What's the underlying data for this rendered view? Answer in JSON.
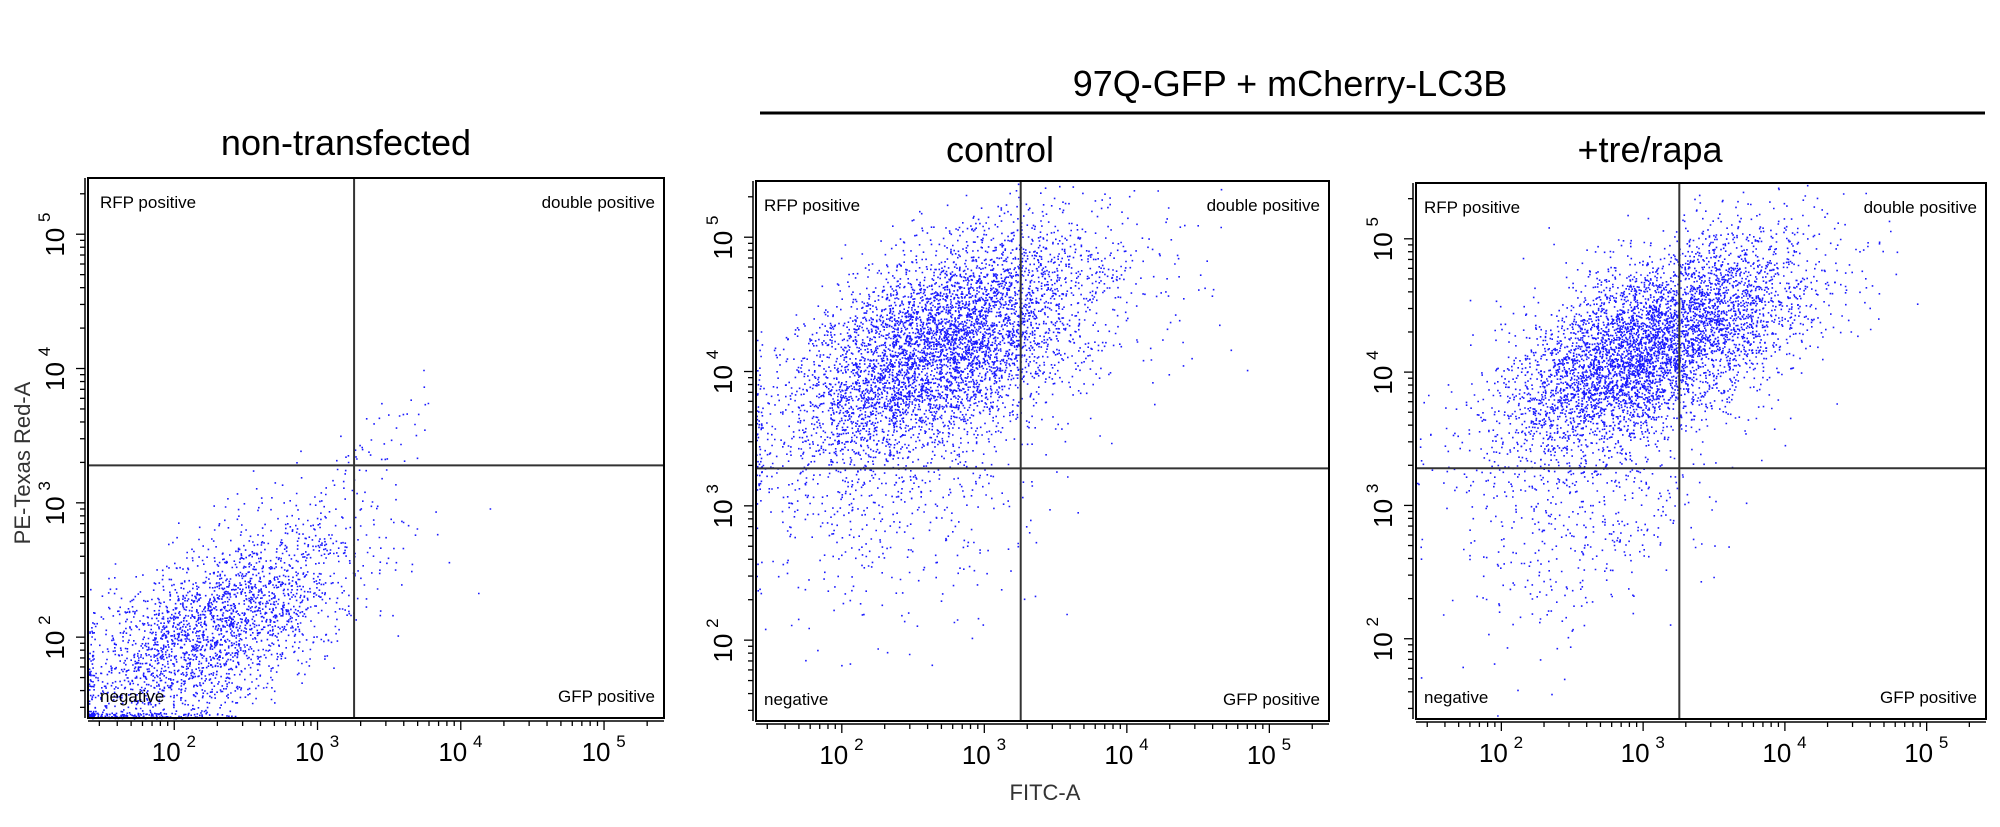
{
  "figure": {
    "group_label": "97Q-GFP + mCherry-LC3B",
    "xlabel": "FITC-A",
    "ylabel": "PE-Texas Red-A"
  },
  "colors": {
    "dots": "#1a1aff",
    "frame": "#000000",
    "gate": "#333333"
  },
  "chart_data": [
    {
      "type": "scatter",
      "title": "non-transfected",
      "xlabel": "FITC-A",
      "ylabel": "PE-Texas Red-A",
      "xscale": "log",
      "yscale": "log",
      "xlim": [
        25,
        262144
      ],
      "ylim": [
        25,
        262144
      ],
      "xticks": [
        {
          "base": "10",
          "exp": "2",
          "value": 100
        },
        {
          "base": "10",
          "exp": "3",
          "value": 1000
        },
        {
          "base": "10",
          "exp": "4",
          "value": 10000
        },
        {
          "base": "10",
          "exp": "5",
          "value": 100000
        }
      ],
      "yticks": [
        {
          "base": "10",
          "exp": "2",
          "value": 100
        },
        {
          "base": "10",
          "exp": "3",
          "value": 1000
        },
        {
          "base": "10",
          "exp": "4",
          "value": 10000
        },
        {
          "base": "10",
          "exp": "5",
          "value": 100000
        }
      ],
      "gate": {
        "x": 1800,
        "y": 1900
      },
      "quadrants": {
        "top_left": "RFP positive",
        "top_right": "double positive",
        "bottom_left": "negative",
        "bottom_right": "GFP positive"
      },
      "populations": [
        {
          "center": [
            180,
            110
          ],
          "log_sd": [
            0.5,
            0.42
          ],
          "correlation": 0.65,
          "events": 2600
        },
        {
          "center": [
            2500,
            2600
          ],
          "log_sd": [
            0.3,
            0.28
          ],
          "correlation": 0.85,
          "events": 60
        }
      ]
    },
    {
      "type": "scatter",
      "title": "control",
      "xlabel": "FITC-A",
      "ylabel": "PE-Texas Red-A",
      "xscale": "log",
      "yscale": "log",
      "xlim": [
        25,
        262144
      ],
      "ylim": [
        25,
        262144
      ],
      "xticks": [
        {
          "base": "10",
          "exp": "2",
          "value": 100
        },
        {
          "base": "10",
          "exp": "3",
          "value": 1000
        },
        {
          "base": "10",
          "exp": "4",
          "value": 10000
        },
        {
          "base": "10",
          "exp": "5",
          "value": 100000
        }
      ],
      "yticks": [
        {
          "base": "10",
          "exp": "2",
          "value": 100
        },
        {
          "base": "10",
          "exp": "3",
          "value": 1000
        },
        {
          "base": "10",
          "exp": "4",
          "value": 10000
        },
        {
          "base": "10",
          "exp": "5",
          "value": 100000
        }
      ],
      "gate": {
        "x": 1800,
        "y": 1900
      },
      "quadrants": {
        "top_left": "RFP positive",
        "top_right": "double positive",
        "bottom_left": "negative",
        "bottom_right": "GFP positive"
      },
      "populations": [
        {
          "center": [
            450,
            15000
          ],
          "log_sd": [
            0.52,
            0.42
          ],
          "correlation": 0.55,
          "events": 5000
        },
        {
          "center": [
            250,
            1200
          ],
          "log_sd": [
            0.5,
            0.5
          ],
          "correlation": 0.3,
          "events": 500
        },
        {
          "center": [
            4000,
            30000
          ],
          "log_sd": [
            0.45,
            0.4
          ],
          "correlation": 0.3,
          "events": 300
        }
      ]
    },
    {
      "type": "scatter",
      "title": "+tre/rapa",
      "xlabel": "FITC-A",
      "ylabel": "PE-Texas Red-A",
      "xscale": "log",
      "yscale": "log",
      "xlim": [
        25,
        262144
      ],
      "ylim": [
        25,
        262144
      ],
      "xticks": [
        {
          "base": "10",
          "exp": "2",
          "value": 100
        },
        {
          "base": "10",
          "exp": "3",
          "value": 1000
        },
        {
          "base": "10",
          "exp": "4",
          "value": 10000
        },
        {
          "base": "10",
          "exp": "5",
          "value": 100000
        }
      ],
      "yticks": [
        {
          "base": "10",
          "exp": "2",
          "value": 100
        },
        {
          "base": "10",
          "exp": "3",
          "value": 1000
        },
        {
          "base": "10",
          "exp": "4",
          "value": 10000
        },
        {
          "base": "10",
          "exp": "5",
          "value": 100000
        }
      ],
      "gate": {
        "x": 1800,
        "y": 1900
      },
      "quadrants": {
        "top_left": "RFP positive",
        "top_right": "double positive",
        "bottom_left": "negative",
        "bottom_right": "GFP positive"
      },
      "populations": [
        {
          "center": [
            1000,
            15000
          ],
          "log_sd": [
            0.5,
            0.4
          ],
          "correlation": 0.6,
          "events": 5000
        },
        {
          "center": [
            400,
            900
          ],
          "log_sd": [
            0.45,
            0.5
          ],
          "correlation": 0.3,
          "events": 500
        },
        {
          "center": [
            5000,
            25000
          ],
          "log_sd": [
            0.4,
            0.35
          ],
          "correlation": 0.4,
          "events": 400
        }
      ]
    }
  ]
}
